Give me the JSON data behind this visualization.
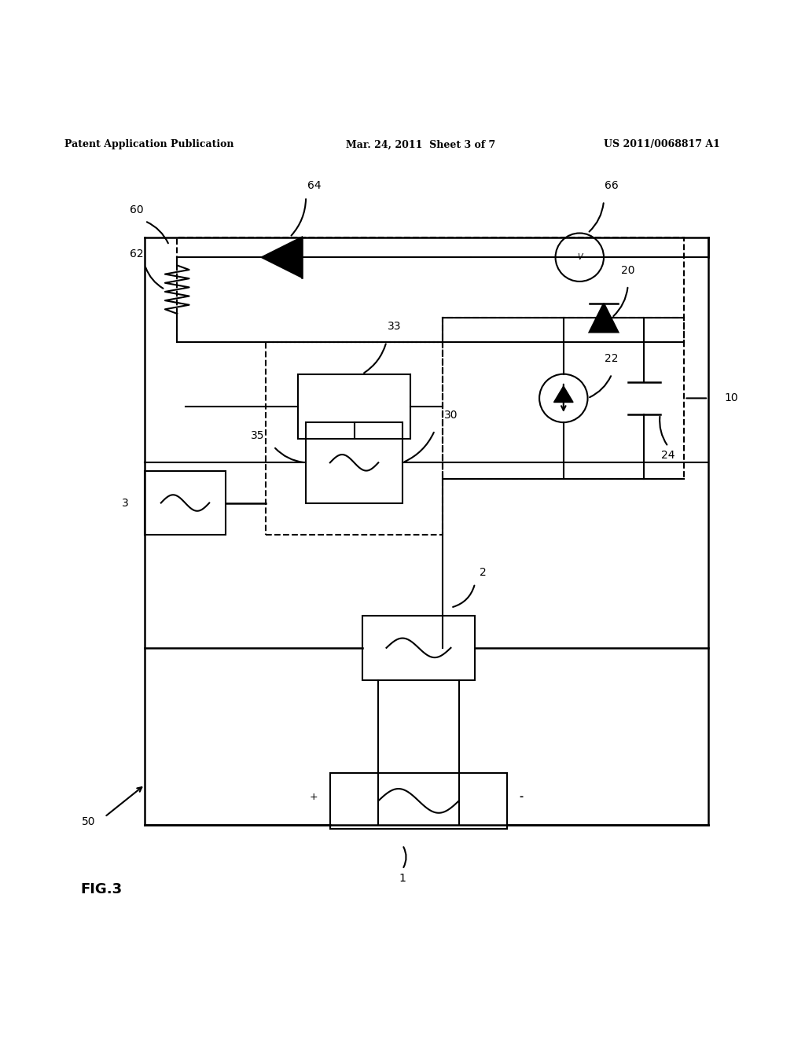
{
  "bg_color": "#ffffff",
  "header_left": "Patent Application Publication",
  "header_mid": "Mar. 24, 2011  Sheet 3 of 7",
  "header_right": "US 2011/0068817 A1",
  "footer_label": "FIG.3",
  "fig_width": 10.24,
  "fig_height": 13.2,
  "dpi": 100
}
